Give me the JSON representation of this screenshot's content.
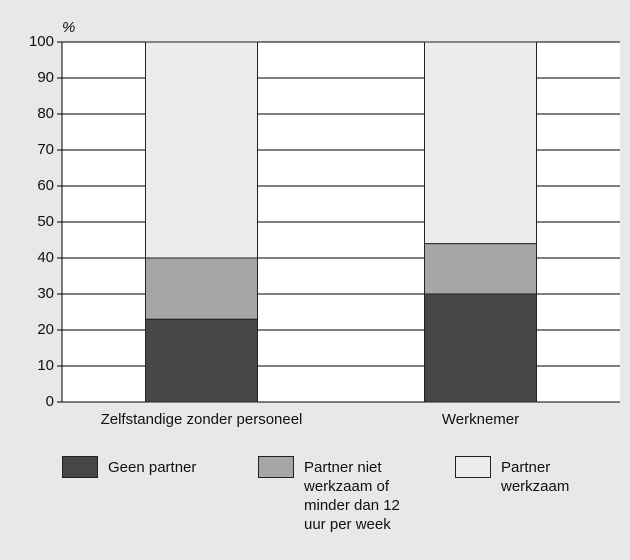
{
  "chart_data": {
    "type": "stacked_bar",
    "y_label": "%",
    "categories": [
      "Zelfstandige zonder personeel",
      "Werknemer"
    ],
    "series": [
      {
        "name": "Geen partner",
        "color": "#474747",
        "values": [
          23,
          30
        ]
      },
      {
        "name": "Partner niet werkzaam of minder dan 12 uur per week",
        "color": "#a6a6a6",
        "values": [
          17,
          14
        ]
      },
      {
        "name": "Partner werkzaam",
        "color": "#ececec",
        "values": [
          60,
          56
        ]
      }
    ],
    "ylim": [
      0,
      100
    ],
    "yticks": [
      0,
      10,
      20,
      30,
      40,
      50,
      60,
      70,
      80,
      90,
      100
    ],
    "grid": true
  }
}
